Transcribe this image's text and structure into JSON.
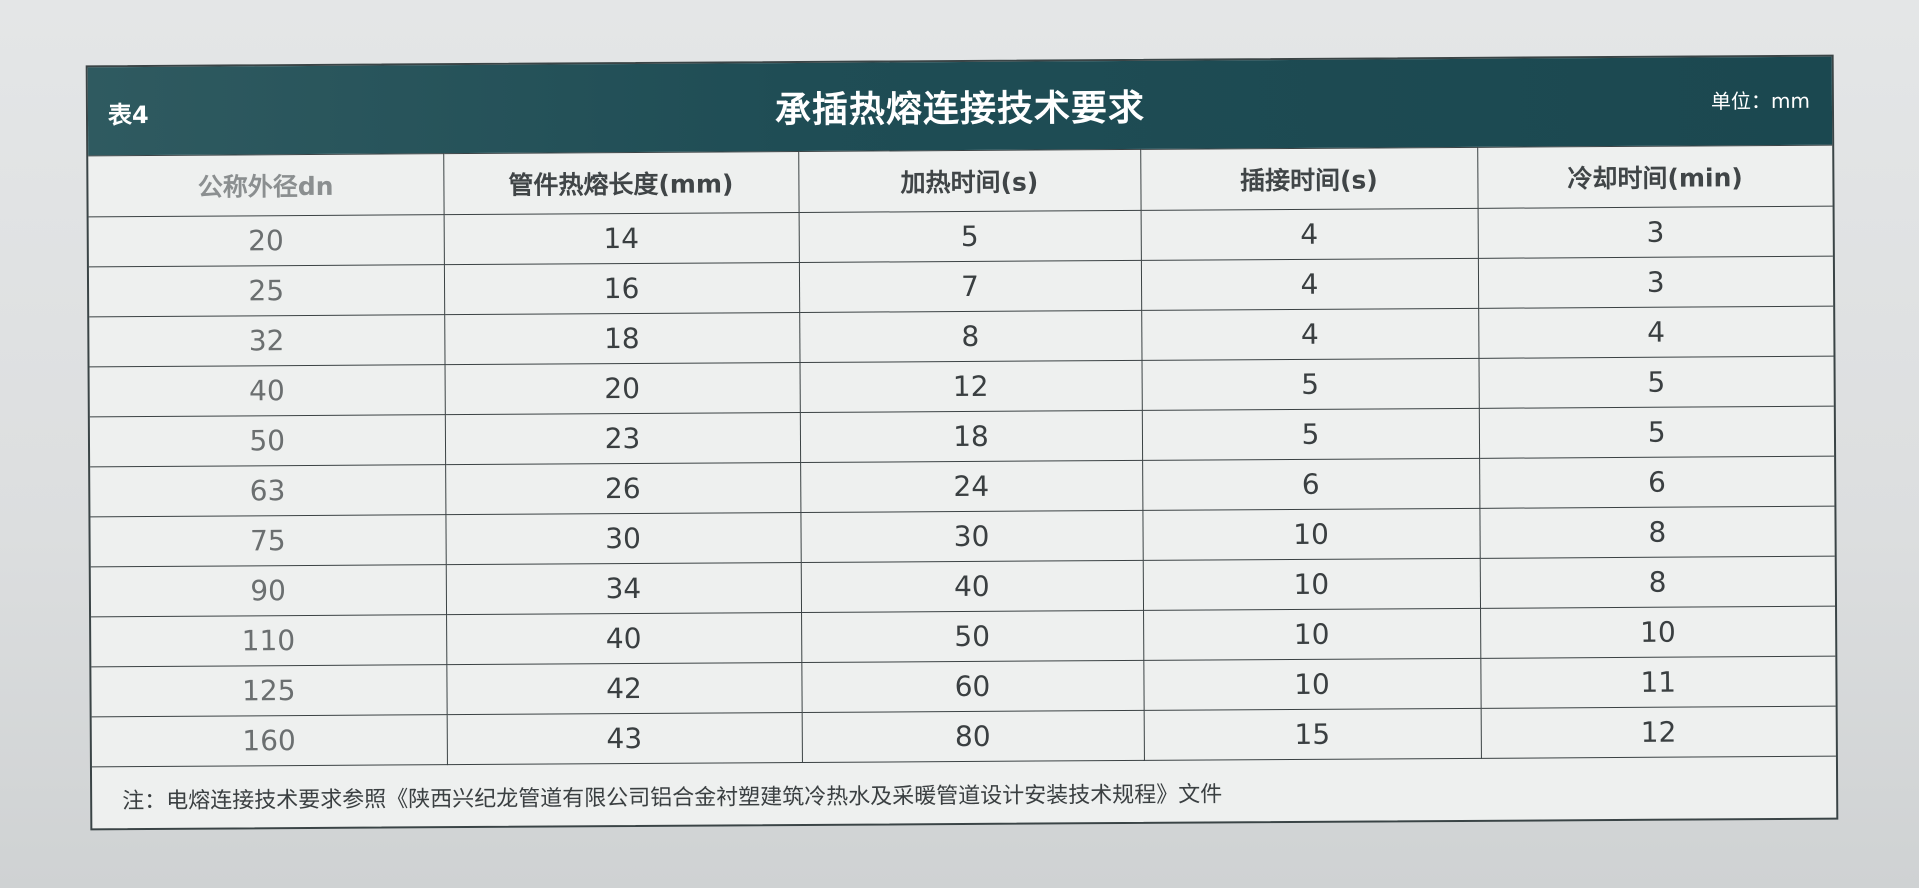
{
  "table": {
    "number": "表4",
    "title": "承插热熔连接技术要求",
    "unit": "单位：mm",
    "headers": [
      "公称外径dn",
      "管件热熔长度(mm)",
      "加热时间(s)",
      "插接时间(s)",
      "冷却时间(min)"
    ],
    "rows": [
      [
        "20",
        "14",
        "5",
        "4",
        "3"
      ],
      [
        "25",
        "16",
        "7",
        "4",
        "3"
      ],
      [
        "32",
        "18",
        "8",
        "4",
        "4"
      ],
      [
        "40",
        "20",
        "12",
        "5",
        "5"
      ],
      [
        "50",
        "23",
        "18",
        "5",
        "5"
      ],
      [
        "63",
        "26",
        "24",
        "6",
        "6"
      ],
      [
        "75",
        "30",
        "30",
        "10",
        "8"
      ],
      [
        "90",
        "34",
        "40",
        "10",
        "8"
      ],
      [
        "110",
        "40",
        "50",
        "10",
        "10"
      ],
      [
        "125",
        "42",
        "60",
        "10",
        "11"
      ],
      [
        "160",
        "43",
        "80",
        "15",
        "12"
      ]
    ],
    "note": "注：电熔连接技术要求参照《陕西兴纪龙管道有限公司铝合金衬塑建筑冷热水及采暖管道设计安装技术规程》文件",
    "colors": {
      "header_band": "#1f4d55",
      "paper": "#eef0ef"
    }
  }
}
